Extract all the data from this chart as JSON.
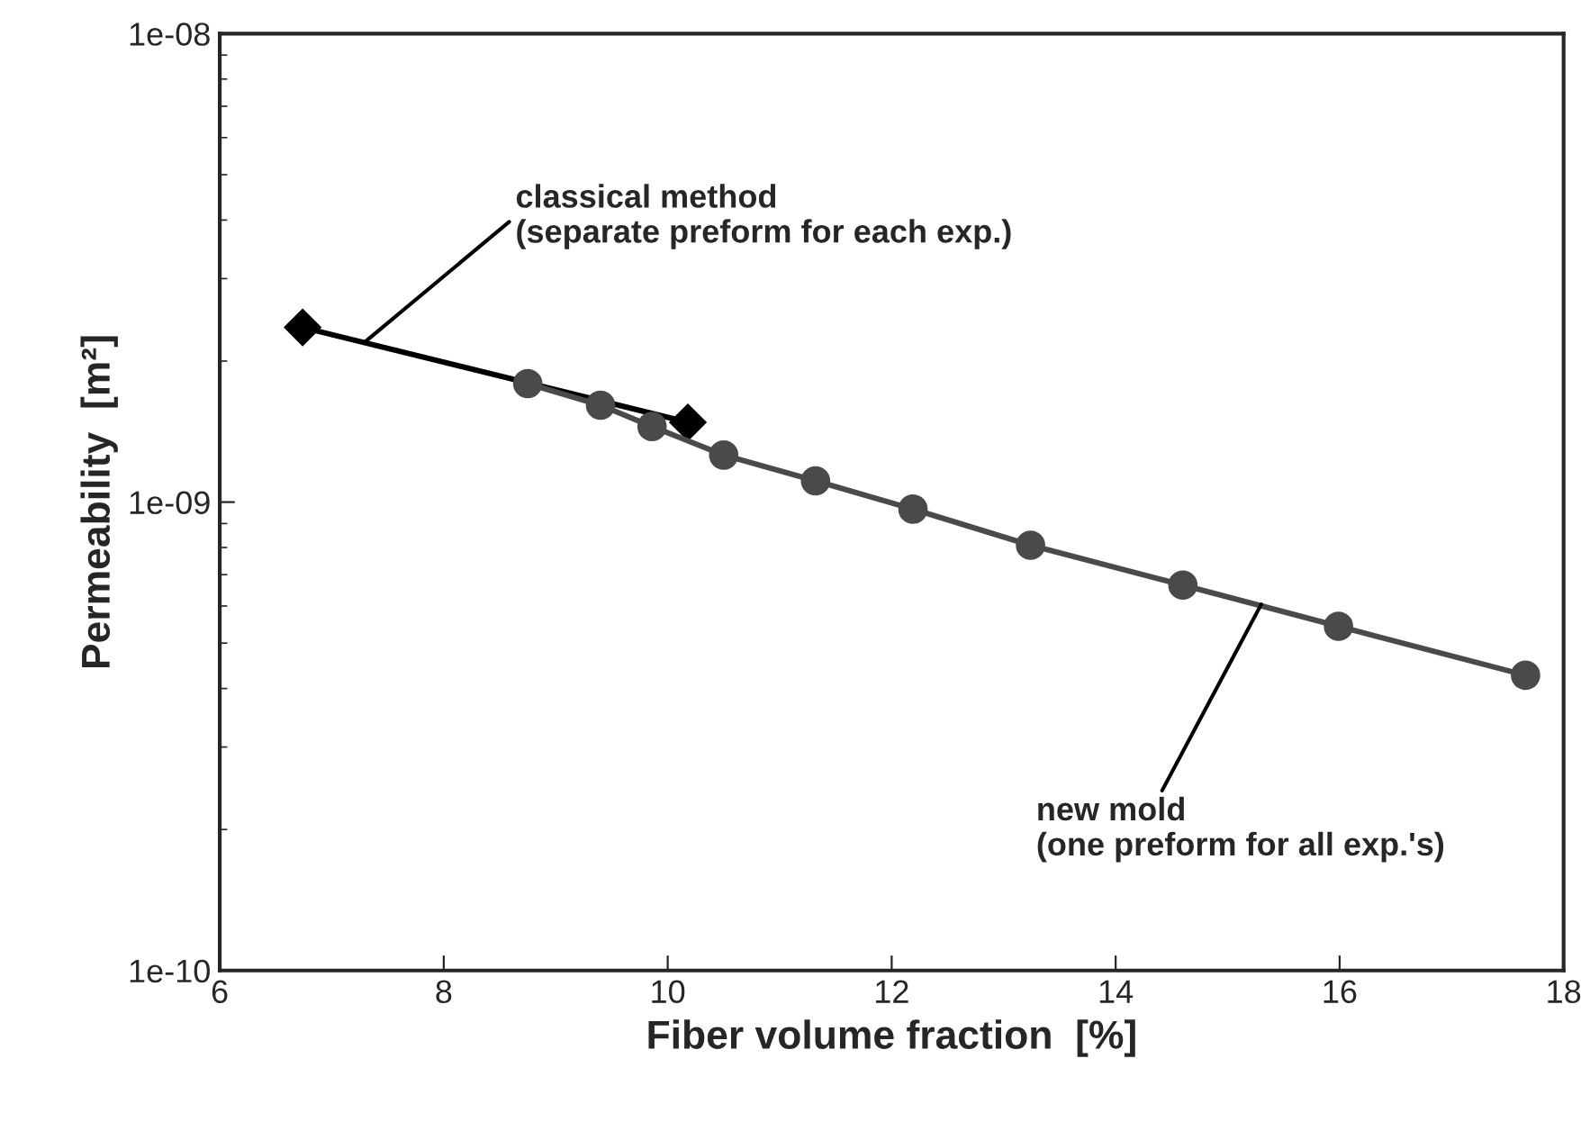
{
  "chart_data": {
    "type": "line",
    "xlabel": "Fiber volume fraction  [%]",
    "ylabel": "Permeability  [m²]",
    "log": "y",
    "grid": false,
    "legend": false,
    "xlim": [
      6,
      18
    ],
    "xticks": [
      6,
      8,
      10,
      12,
      14,
      16,
      18
    ],
    "ylim": [
      1e-10,
      1e-08
    ],
    "yticks": [
      {
        "value": 1e-10,
        "label": "1e-10"
      },
      {
        "value": 1e-09,
        "label": "1e-09"
      },
      {
        "value": 1e-08,
        "label": "1e-08"
      }
    ],
    "series": [
      {
        "color": "#000000",
        "marker": "diamond",
        "x": [
          6.74,
          10.18
        ],
        "values": [
          2.36e-09,
          1.48e-09
        ]
      },
      {
        "color": "#4a4a4a",
        "marker": "circle",
        "x": [
          8.75,
          9.4,
          9.86,
          10.5,
          11.32,
          12.19,
          13.24,
          14.6,
          15.99,
          17.66
        ],
        "values": [
          1.79e-09,
          1.61e-09,
          1.45e-09,
          1.26e-09,
          1.11e-09,
          9.66e-10,
          8.09e-10,
          6.65e-10,
          5.43e-10,
          4.27e-10
        ]
      }
    ],
    "annotations": [
      {
        "text": "classical method\n(separate preform for each exp.)",
        "x": 7.3,
        "y": 2.2e-09
      },
      {
        "text": "new mold\n(one preform for all exp.'s)",
        "x": 15.3,
        "y": 6.05e-10
      }
    ]
  }
}
